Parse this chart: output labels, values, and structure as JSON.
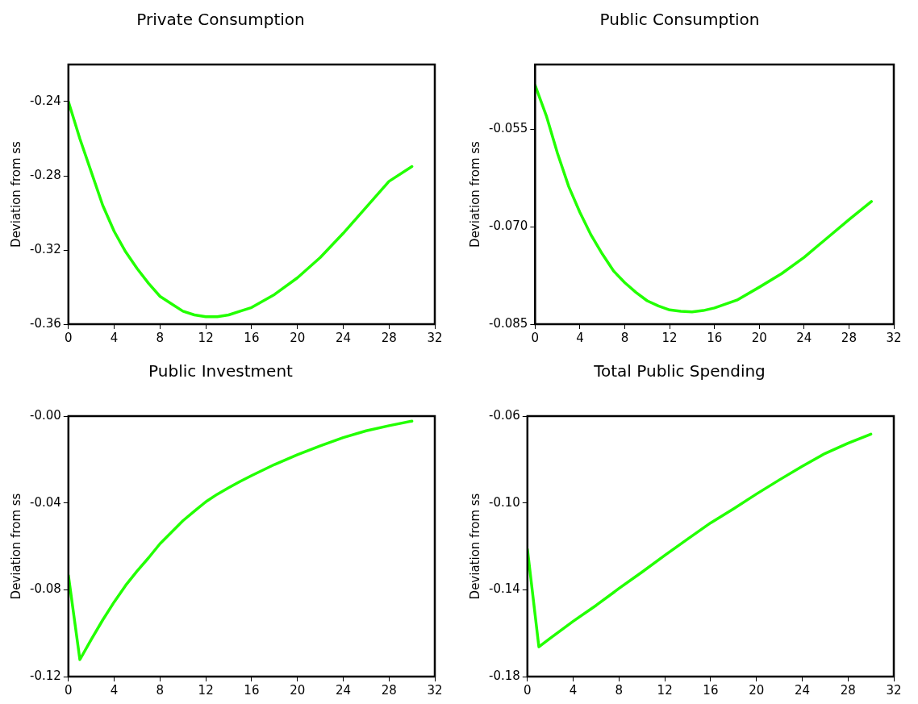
{
  "chart_data": [
    {
      "type": "line",
      "title": "Private Consumption",
      "ylabel": "Deviation from ss",
      "x": [
        0,
        1,
        2,
        3,
        4,
        5,
        6,
        7,
        8,
        9,
        10,
        11,
        12,
        13,
        14,
        15,
        16,
        18,
        20,
        22,
        24,
        26,
        28,
        30
      ],
      "series": [
        {
          "color": "#22ff00",
          "values": [
            -0.24,
            -0.26,
            -0.278,
            -0.296,
            -0.31,
            -0.321,
            -0.33,
            -0.338,
            -0.345,
            -0.349,
            -0.353,
            -0.355,
            -0.356,
            -0.356,
            -0.355,
            -0.353,
            -0.351,
            -0.344,
            -0.335,
            -0.324,
            -0.311,
            -0.297,
            -0.283,
            -0.275
          ]
        }
      ],
      "xlim": [
        0,
        32
      ],
      "xticks": [
        0,
        4,
        8,
        12,
        16,
        20,
        24,
        28,
        32
      ],
      "ylim": [
        -0.36,
        -0.22
      ],
      "yticks": [
        -0.36,
        -0.32,
        -0.28,
        -0.24
      ],
      "marker": "none",
      "line_style": "solid"
    },
    {
      "type": "line",
      "title": "Public Consumption",
      "ylabel": "Deviation from ss",
      "x": [
        0,
        1,
        2,
        3,
        4,
        5,
        6,
        7,
        8,
        9,
        10,
        11,
        12,
        13,
        14,
        15,
        16,
        18,
        20,
        22,
        24,
        26,
        28,
        30
      ],
      "series": [
        {
          "color": "#22ff00",
          "values": [
            -0.0482,
            -0.0529,
            -0.0587,
            -0.0638,
            -0.0678,
            -0.0713,
            -0.0742,
            -0.0768,
            -0.0786,
            -0.0801,
            -0.0814,
            -0.0822,
            -0.0828,
            -0.083,
            -0.0831,
            -0.0829,
            -0.0825,
            -0.0813,
            -0.0793,
            -0.0772,
            -0.0747,
            -0.0718,
            -0.0689,
            -0.0661
          ]
        }
      ],
      "xlim": [
        0,
        32
      ],
      "xticks": [
        0,
        4,
        8,
        12,
        16,
        20,
        24,
        28,
        32
      ],
      "ylim": [
        -0.085,
        -0.045
      ],
      "yticks": [
        {
          "value": -0.085,
          "label": "-0.085"
        },
        {
          "value": -0.07,
          "label": "-0.070"
        },
        {
          "value": -0.055,
          "label": "-0.055"
        }
      ],
      "marker": "none",
      "line_style": "solid"
    },
    {
      "type": "line",
      "title": "Public Investment",
      "ylabel": "Deviation from ss",
      "x": [
        0,
        1,
        2,
        3,
        4,
        5,
        6,
        7,
        8,
        9,
        10,
        11,
        12,
        13,
        14,
        15,
        16,
        18,
        20,
        22,
        24,
        26,
        28,
        30
      ],
      "series": [
        {
          "color": "#22ff00",
          "values": [
            -0.0734,
            -0.1122,
            -0.1029,
            -0.0939,
            -0.0856,
            -0.078,
            -0.0714,
            -0.0653,
            -0.0588,
            -0.0535,
            -0.0482,
            -0.0438,
            -0.0395,
            -0.036,
            -0.033,
            -0.0301,
            -0.0274,
            -0.0223,
            -0.0178,
            -0.0137,
            -0.0099,
            -0.0068,
            -0.0044,
            -0.0023
          ]
        }
      ],
      "xlim": [
        0,
        32
      ],
      "xticks": [
        0,
        4,
        8,
        12,
        16,
        20,
        24,
        28,
        32
      ],
      "ylim": [
        -0.12,
        0
      ],
      "yticks": [
        -0.12,
        {
          "value": -0.08,
          "label": "-0.08"
        },
        {
          "value": -0.04,
          "label": "-0.04"
        },
        {
          "value": 0,
          "label": "-0.00"
        }
      ],
      "marker": "none",
      "line_style": "solid"
    },
    {
      "type": "line",
      "title": "Total Public Spending",
      "ylabel": "Deviation from ss",
      "x": [
        0,
        1,
        2,
        4,
        6,
        8,
        10,
        12,
        14,
        16,
        18,
        20,
        22,
        24,
        26,
        28,
        30
      ],
      "series": [
        {
          "color": "#22ff00",
          "values": [
            -0.1213,
            -0.1663,
            -0.1623,
            -0.1545,
            -0.1472,
            -0.1394,
            -0.1319,
            -0.1241,
            -0.1166,
            -0.1092,
            -0.1027,
            -0.0959,
            -0.0894,
            -0.0831,
            -0.0772,
            -0.0725,
            -0.0683
          ]
        }
      ],
      "xlim": [
        0,
        32
      ],
      "xticks": [
        0,
        4,
        8,
        12,
        16,
        20,
        24,
        28,
        32
      ],
      "ylim": [
        -0.18,
        -0.06
      ],
      "yticks": [
        -0.18,
        -0.14,
        {
          "value": -0.1,
          "label": "-0.10"
        },
        -0.06
      ],
      "marker": "none",
      "line_style": "solid"
    }
  ]
}
